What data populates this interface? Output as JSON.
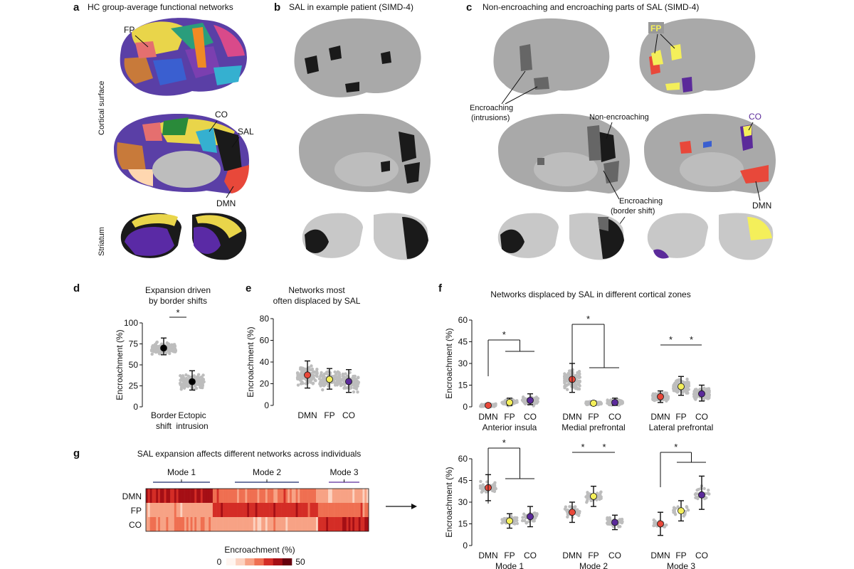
{
  "panels": {
    "a": {
      "letter": "a",
      "title": "HC group-average functional networks",
      "side_labels": [
        "Cortical surface",
        "Striatum"
      ],
      "network_labels": [
        "FP",
        "CO",
        "SAL",
        "DMN"
      ]
    },
    "b": {
      "letter": "b",
      "title": "SAL in example patient (SIMD-4)"
    },
    "c": {
      "letter": "c",
      "title": "Non-encroaching and encroaching parts of SAL (SIMD-4)",
      "callouts": [
        "Encroaching",
        "(intrusions)",
        "Non-encroaching",
        "Encroaching",
        "(border shift)"
      ],
      "network_labels": [
        "FP",
        "CO",
        "DMN"
      ]
    },
    "d": {
      "letter": "d",
      "title_lines": [
        "Expansion driven",
        "by border shifts"
      ]
    },
    "e": {
      "letter": "e",
      "title_lines": [
        "Networks most",
        "often displaced by SAL"
      ]
    },
    "f": {
      "letter": "f",
      "title": "Networks displaced by SAL in different cortical zones"
    },
    "g": {
      "letter": "g",
      "title": "SAL expansion affects different networks across individuals",
      "mode_labels": [
        "Mode 1",
        "Mode 2",
        "Mode 3"
      ],
      "row_labels": [
        "DMN",
        "FP",
        "CO"
      ],
      "colorbar": {
        "label": "Encroachment (%)",
        "min": "0",
        "max": "50"
      }
    }
  },
  "colors": {
    "DMN": "#e8483a",
    "FP": "#f4ef5a",
    "CO": "#5b2a9a",
    "SAL": "#1a1a1a",
    "brain": "#a9a9a9",
    "point": "#bdbdbd"
  },
  "chart_data": [
    {
      "panel": "d",
      "type": "scatter",
      "ylabel": "Encroachment (%)",
      "ylim": [
        0,
        100
      ],
      "yticks": [
        "0",
        "25",
        "50",
        "75",
        "100"
      ],
      "categories": [
        "Border shift",
        "Ectopic intrusion"
      ],
      "category_lines": [
        [
          "Border",
          "shift"
        ],
        [
          "Ectopic",
          "intrusion"
        ]
      ],
      "means": [
        70,
        30
      ],
      "err_low": [
        62,
        20
      ],
      "err_high": [
        82,
        43
      ],
      "mean_colors": [
        "#000000",
        "#000000"
      ],
      "significance": "*"
    },
    {
      "panel": "e",
      "type": "scatter",
      "ylabel": "Encroachment (%)",
      "ylim": [
        0,
        80
      ],
      "yticks": [
        "0",
        "20",
        "40",
        "60",
        "80"
      ],
      "categories": [
        "DMN",
        "FP",
        "CO"
      ],
      "means": [
        28,
        24,
        22
      ],
      "err_low": [
        16,
        15,
        12
      ],
      "err_high": [
        41,
        34,
        33
      ],
      "mean_colors": [
        "#e8483a",
        "#f4ef5a",
        "#5b2a9a"
      ]
    },
    {
      "panel": "f",
      "type": "scatter",
      "ylabel": "Encroachment (%)",
      "ylim": [
        0,
        60
      ],
      "yticks": [
        "0",
        "15",
        "30",
        "45",
        "60"
      ],
      "groups": [
        {
          "name": "Anterior insula",
          "categories": [
            "DMN",
            "FP",
            "CO"
          ],
          "means": [
            1,
            3,
            4.5
          ],
          "err_low": [
            0,
            1,
            1.5
          ],
          "err_high": [
            2,
            6,
            9
          ],
          "significance": "*"
        },
        {
          "name": "Medial prefrontal",
          "categories": [
            "DMN",
            "FP",
            "CO"
          ],
          "means": [
            19,
            2.5,
            3
          ],
          "err_low": [
            10,
            1,
            1
          ],
          "err_high": [
            30,
            4,
            6
          ],
          "significance": "*"
        },
        {
          "name": "Lateral prefrontal",
          "categories": [
            "DMN",
            "FP",
            "CO"
          ],
          "means": [
            7,
            14,
            9
          ],
          "err_low": [
            3,
            8,
            4
          ],
          "err_high": [
            11,
            21,
            15
          ],
          "significance": [
            "*",
            "*"
          ]
        }
      ],
      "mean_colors": [
        "#e8483a",
        "#f4ef5a",
        "#5b2a9a"
      ]
    },
    {
      "panel": "g-right",
      "type": "scatter",
      "ylabel": "Encroachment (%)",
      "ylim": [
        0,
        60
      ],
      "yticks": [
        "0",
        "15",
        "30",
        "45",
        "60"
      ],
      "groups": [
        {
          "name": "Mode 1",
          "categories": [
            "DMN",
            "FP",
            "CO"
          ],
          "means": [
            40,
            17,
            20
          ],
          "err_low": [
            31,
            12,
            13
          ],
          "err_high": [
            49,
            22,
            27
          ],
          "significance": "*"
        },
        {
          "name": "Mode 2",
          "categories": [
            "DMN",
            "FP",
            "CO"
          ],
          "means": [
            23,
            34,
            16
          ],
          "err_low": [
            16,
            27,
            11
          ],
          "err_high": [
            30,
            41,
            21
          ],
          "significance": [
            "*",
            "*"
          ]
        },
        {
          "name": "Mode 3",
          "categories": [
            "DMN",
            "FP",
            "CO"
          ],
          "means": [
            15,
            24,
            35
          ],
          "err_low": [
            7,
            17,
            25
          ],
          "err_high": [
            23,
            31,
            48
          ],
          "significance": "*"
        }
      ],
      "mean_colors": [
        "#e8483a",
        "#f4ef5a",
        "#5b2a9a"
      ]
    },
    {
      "panel": "g-left",
      "type": "heatmap",
      "rows": [
        "DMN",
        "FP",
        "CO"
      ],
      "value_range": [
        0,
        50
      ],
      "colorbar_colors": [
        "#fff5f0",
        "#fcd2c0",
        "#f7a285",
        "#ef6f51",
        "#d42d26",
        "#a50f15",
        "#67000d"
      ],
      "mode_extents": [
        [
          0,
          0.3
        ],
        [
          0.3,
          0.77
        ],
        [
          0.77,
          1
        ]
      ],
      "mode_means": [
        [
          40,
          17,
          20
        ],
        [
          23,
          34,
          16
        ],
        [
          15,
          24,
          35
        ]
      ]
    }
  ]
}
